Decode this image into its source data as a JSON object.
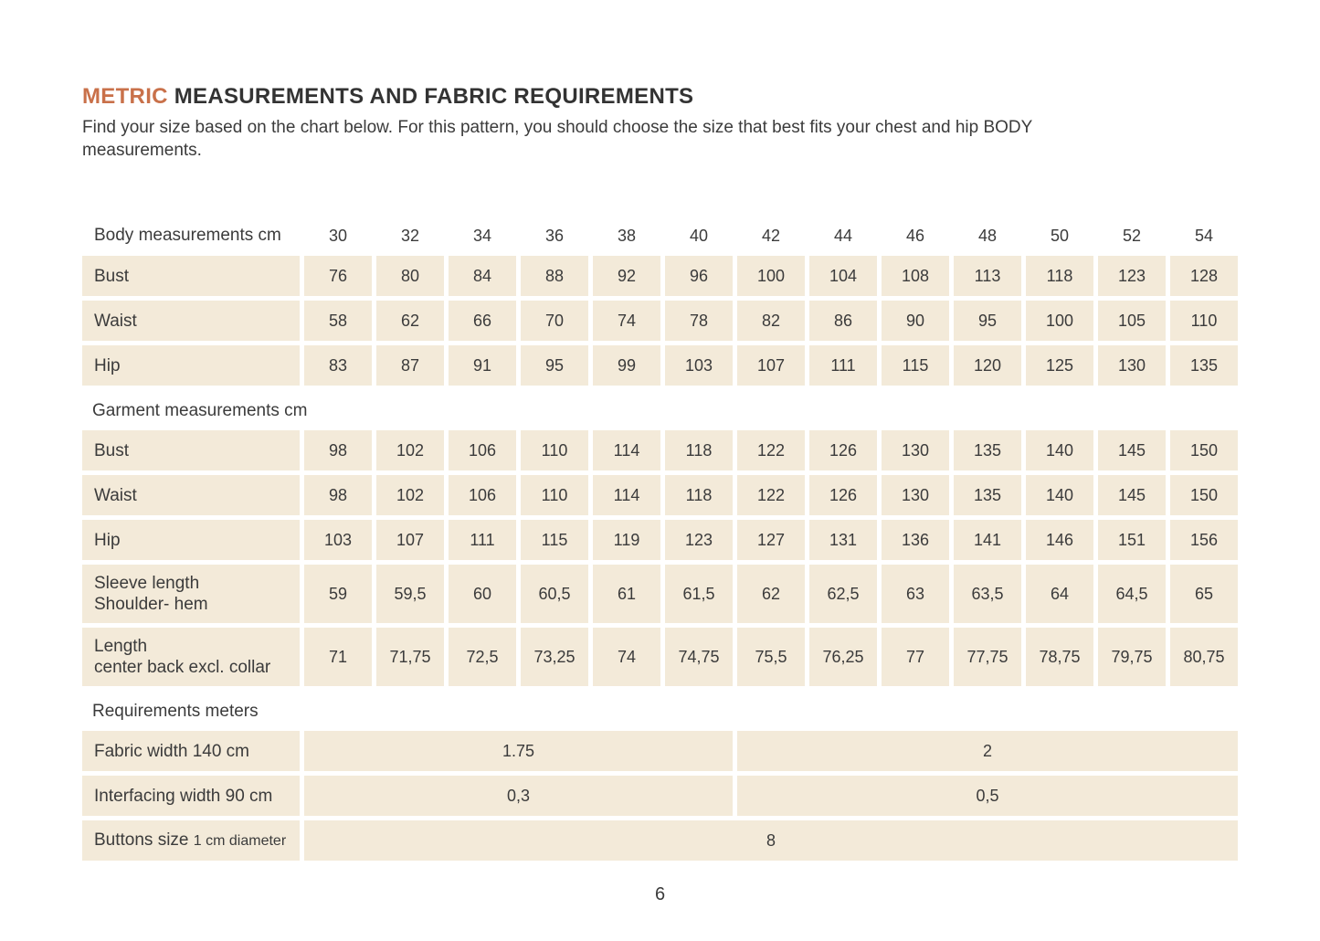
{
  "page": {
    "title": {
      "highlight": "METRIC",
      "rest": "MEASUREMENTS AND FABRIC REQUIREMENTS"
    },
    "subtitle": "Find your size based on the chart below. For this pattern, you should choose the size that best fits your chest and hip BODY measurements.",
    "page_number": "6"
  },
  "colors": {
    "accent": "#c9714a",
    "cell_background": "#f3ead9",
    "text": "#3b3b3b"
  },
  "chart_data": {
    "type": "table",
    "title": "Metric measurements and fabric requirements",
    "sections": [
      {
        "header": "Body measurements cm",
        "sizes": [
          "30",
          "32",
          "34",
          "36",
          "38",
          "40",
          "42",
          "44",
          "46",
          "48",
          "50",
          "52",
          "54"
        ],
        "rows": [
          {
            "label": "Bust",
            "values": [
              "76",
              "80",
              "84",
              "88",
              "92",
              "96",
              "100",
              "104",
              "108",
              "113",
              "118",
              "123",
              "128"
            ]
          },
          {
            "label": "Waist",
            "values": [
              "58",
              "62",
              "66",
              "70",
              "74",
              "78",
              "82",
              "86",
              "90",
              "95",
              "100",
              "105",
              "110"
            ]
          },
          {
            "label": "Hip",
            "values": [
              "83",
              "87",
              "91",
              "95",
              "99",
              "103",
              "107",
              "111",
              "115",
              "120",
              "125",
              "130",
              "135"
            ]
          }
        ]
      },
      {
        "header": "Garment measurements cm",
        "rows": [
          {
            "label": "Bust",
            "values": [
              "98",
              "102",
              "106",
              "110",
              "114",
              "118",
              "122",
              "126",
              "130",
              "135",
              "140",
              "145",
              "150"
            ]
          },
          {
            "label": "Waist",
            "values": [
              "98",
              "102",
              "106",
              "110",
              "114",
              "118",
              "122",
              "126",
              "130",
              "135",
              "140",
              "145",
              "150"
            ]
          },
          {
            "label": "Hip",
            "values": [
              "103",
              "107",
              "111",
              "115",
              "119",
              "123",
              "127",
              "131",
              "136",
              "141",
              "146",
              "151",
              "156"
            ]
          },
          {
            "label": "Sleeve length",
            "label2": "Shoulder- hem",
            "values": [
              "59",
              "59,5",
              "60",
              "60,5",
              "61",
              "61,5",
              "62",
              "62,5",
              "63",
              "63,5",
              "64",
              "64,5",
              "65"
            ]
          },
          {
            "label": "Length",
            "label2": "center back excl. collar",
            "values": [
              "71",
              "71,75",
              "72,5",
              "73,25",
              "74",
              "74,75",
              "75,5",
              "76,25",
              "77",
              "77,75",
              "78,75",
              "79,75",
              "80,75"
            ]
          }
        ]
      },
      {
        "header": "Requirements meters",
        "rows": [
          {
            "label": "Fabric width 140 cm",
            "spans": [
              {
                "value": "1.75",
                "cols": 6
              },
              {
                "value": "2",
                "cols": 7
              }
            ]
          },
          {
            "label": "Interfacing width 90 cm",
            "spans": [
              {
                "value": "0,3",
                "cols": 6
              },
              {
                "value": "0,5",
                "cols": 7
              }
            ]
          },
          {
            "label": "Buttons size",
            "label_small": "1 cm diameter",
            "spans": [
              {
                "value": "8",
                "cols": 13
              }
            ]
          }
        ]
      }
    ]
  }
}
